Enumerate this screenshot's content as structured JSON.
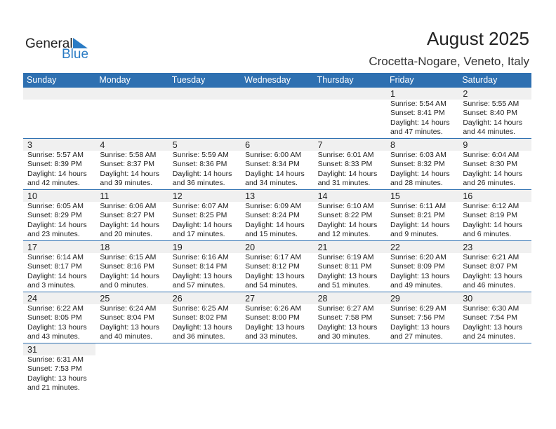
{
  "logo": {
    "line1": "General",
    "line2": "Blue"
  },
  "title": "August 2025",
  "location": "Crocetta-Nogare, Veneto, Italy",
  "colors": {
    "header": "#2e70b1",
    "band": "#f0f0f0"
  },
  "days": [
    "Sunday",
    "Monday",
    "Tuesday",
    "Wednesday",
    "Thursday",
    "Friday",
    "Saturday"
  ],
  "weeks": [
    [
      null,
      null,
      null,
      null,
      null,
      {
        "day": "1",
        "sunrise": "Sunrise: 5:54 AM",
        "sunset": "Sunset: 8:41 PM",
        "daylight": "Daylight: 14 hours",
        "minutes": "and 47 minutes."
      },
      {
        "day": "2",
        "sunrise": "Sunrise: 5:55 AM",
        "sunset": "Sunset: 8:40 PM",
        "daylight": "Daylight: 14 hours",
        "minutes": "and 44 minutes."
      }
    ],
    [
      {
        "day": "3",
        "sunrise": "Sunrise: 5:57 AM",
        "sunset": "Sunset: 8:39 PM",
        "daylight": "Daylight: 14 hours",
        "minutes": "and 42 minutes."
      },
      {
        "day": "4",
        "sunrise": "Sunrise: 5:58 AM",
        "sunset": "Sunset: 8:37 PM",
        "daylight": "Daylight: 14 hours",
        "minutes": "and 39 minutes."
      },
      {
        "day": "5",
        "sunrise": "Sunrise: 5:59 AM",
        "sunset": "Sunset: 8:36 PM",
        "daylight": "Daylight: 14 hours",
        "minutes": "and 36 minutes."
      },
      {
        "day": "6",
        "sunrise": "Sunrise: 6:00 AM",
        "sunset": "Sunset: 8:34 PM",
        "daylight": "Daylight: 14 hours",
        "minutes": "and 34 minutes."
      },
      {
        "day": "7",
        "sunrise": "Sunrise: 6:01 AM",
        "sunset": "Sunset: 8:33 PM",
        "daylight": "Daylight: 14 hours",
        "minutes": "and 31 minutes."
      },
      {
        "day": "8",
        "sunrise": "Sunrise: 6:03 AM",
        "sunset": "Sunset: 8:32 PM",
        "daylight": "Daylight: 14 hours",
        "minutes": "and 28 minutes."
      },
      {
        "day": "9",
        "sunrise": "Sunrise: 6:04 AM",
        "sunset": "Sunset: 8:30 PM",
        "daylight": "Daylight: 14 hours",
        "minutes": "and 26 minutes."
      }
    ],
    [
      {
        "day": "10",
        "sunrise": "Sunrise: 6:05 AM",
        "sunset": "Sunset: 8:29 PM",
        "daylight": "Daylight: 14 hours",
        "minutes": "and 23 minutes."
      },
      {
        "day": "11",
        "sunrise": "Sunrise: 6:06 AM",
        "sunset": "Sunset: 8:27 PM",
        "daylight": "Daylight: 14 hours",
        "minutes": "and 20 minutes."
      },
      {
        "day": "12",
        "sunrise": "Sunrise: 6:07 AM",
        "sunset": "Sunset: 8:25 PM",
        "daylight": "Daylight: 14 hours",
        "minutes": "and 17 minutes."
      },
      {
        "day": "13",
        "sunrise": "Sunrise: 6:09 AM",
        "sunset": "Sunset: 8:24 PM",
        "daylight": "Daylight: 14 hours",
        "minutes": "and 15 minutes."
      },
      {
        "day": "14",
        "sunrise": "Sunrise: 6:10 AM",
        "sunset": "Sunset: 8:22 PM",
        "daylight": "Daylight: 14 hours",
        "minutes": "and 12 minutes."
      },
      {
        "day": "15",
        "sunrise": "Sunrise: 6:11 AM",
        "sunset": "Sunset: 8:21 PM",
        "daylight": "Daylight: 14 hours",
        "minutes": "and 9 minutes."
      },
      {
        "day": "16",
        "sunrise": "Sunrise: 6:12 AM",
        "sunset": "Sunset: 8:19 PM",
        "daylight": "Daylight: 14 hours",
        "minutes": "and 6 minutes."
      }
    ],
    [
      {
        "day": "17",
        "sunrise": "Sunrise: 6:14 AM",
        "sunset": "Sunset: 8:17 PM",
        "daylight": "Daylight: 14 hours",
        "minutes": "and 3 minutes."
      },
      {
        "day": "18",
        "sunrise": "Sunrise: 6:15 AM",
        "sunset": "Sunset: 8:16 PM",
        "daylight": "Daylight: 14 hours",
        "minutes": "and 0 minutes."
      },
      {
        "day": "19",
        "sunrise": "Sunrise: 6:16 AM",
        "sunset": "Sunset: 8:14 PM",
        "daylight": "Daylight: 13 hours",
        "minutes": "and 57 minutes."
      },
      {
        "day": "20",
        "sunrise": "Sunrise: 6:17 AM",
        "sunset": "Sunset: 8:12 PM",
        "daylight": "Daylight: 13 hours",
        "minutes": "and 54 minutes."
      },
      {
        "day": "21",
        "sunrise": "Sunrise: 6:19 AM",
        "sunset": "Sunset: 8:11 PM",
        "daylight": "Daylight: 13 hours",
        "minutes": "and 51 minutes."
      },
      {
        "day": "22",
        "sunrise": "Sunrise: 6:20 AM",
        "sunset": "Sunset: 8:09 PM",
        "daylight": "Daylight: 13 hours",
        "minutes": "and 49 minutes."
      },
      {
        "day": "23",
        "sunrise": "Sunrise: 6:21 AM",
        "sunset": "Sunset: 8:07 PM",
        "daylight": "Daylight: 13 hours",
        "minutes": "and 46 minutes."
      }
    ],
    [
      {
        "day": "24",
        "sunrise": "Sunrise: 6:22 AM",
        "sunset": "Sunset: 8:05 PM",
        "daylight": "Daylight: 13 hours",
        "minutes": "and 43 minutes."
      },
      {
        "day": "25",
        "sunrise": "Sunrise: 6:24 AM",
        "sunset": "Sunset: 8:04 PM",
        "daylight": "Daylight: 13 hours",
        "minutes": "and 40 minutes."
      },
      {
        "day": "26",
        "sunrise": "Sunrise: 6:25 AM",
        "sunset": "Sunset: 8:02 PM",
        "daylight": "Daylight: 13 hours",
        "minutes": "and 36 minutes."
      },
      {
        "day": "27",
        "sunrise": "Sunrise: 6:26 AM",
        "sunset": "Sunset: 8:00 PM",
        "daylight": "Daylight: 13 hours",
        "minutes": "and 33 minutes."
      },
      {
        "day": "28",
        "sunrise": "Sunrise: 6:27 AM",
        "sunset": "Sunset: 7:58 PM",
        "daylight": "Daylight: 13 hours",
        "minutes": "and 30 minutes."
      },
      {
        "day": "29",
        "sunrise": "Sunrise: 6:29 AM",
        "sunset": "Sunset: 7:56 PM",
        "daylight": "Daylight: 13 hours",
        "minutes": "and 27 minutes."
      },
      {
        "day": "30",
        "sunrise": "Sunrise: 6:30 AM",
        "sunset": "Sunset: 7:54 PM",
        "daylight": "Daylight: 13 hours",
        "minutes": "and 24 minutes."
      }
    ],
    [
      {
        "day": "31",
        "sunrise": "Sunrise: 6:31 AM",
        "sunset": "Sunset: 7:53 PM",
        "daylight": "Daylight: 13 hours",
        "minutes": "and 21 minutes."
      },
      null,
      null,
      null,
      null,
      null,
      null
    ]
  ]
}
